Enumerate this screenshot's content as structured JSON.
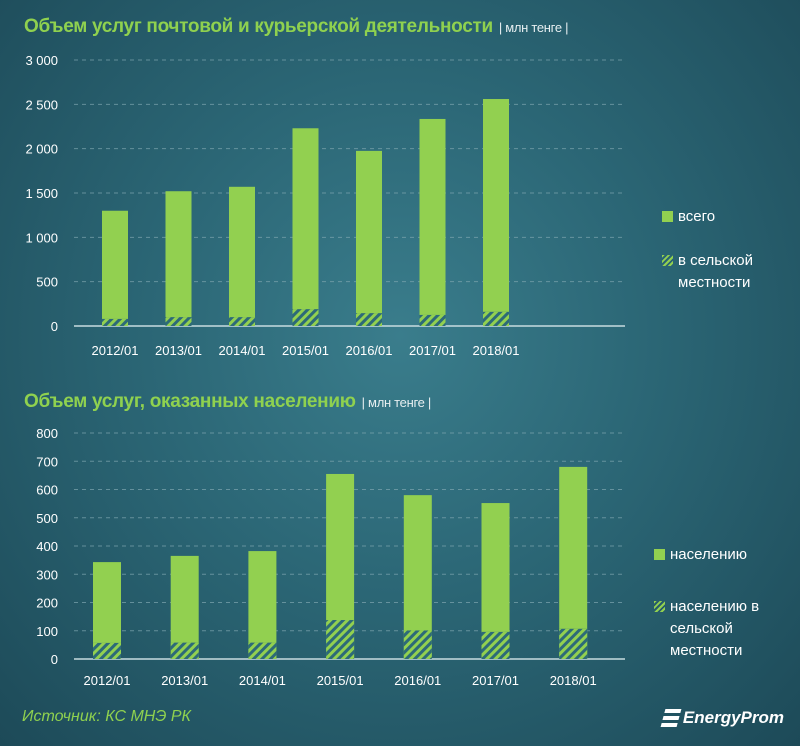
{
  "chart_data": [
    {
      "type": "bar",
      "title": "Объем услуг почтовой и курьерской деятельности",
      "unit": "| млн тенге |",
      "categories": [
        "2012/01",
        "2013/01",
        "2014/01",
        "2015/01",
        "2016/01",
        "2017/01",
        "2018/01"
      ],
      "yticks": [
        "0",
        "500",
        "1 000",
        "1 500",
        "2 000",
        "2 500",
        "3 000"
      ],
      "ylim": [
        0,
        3000
      ],
      "grid": true,
      "legend_position": "right",
      "series": [
        {
          "name": "всего",
          "style": "solid",
          "values": [
            1300,
            1520,
            1570,
            2230,
            1975,
            2335,
            2560
          ]
        },
        {
          "name": "в сельской местности",
          "style": "hatched",
          "values": [
            80,
            100,
            100,
            190,
            145,
            125,
            160
          ]
        }
      ]
    },
    {
      "type": "bar",
      "title": "Объем услуг, оказанных населению",
      "unit": "| млн тенге |",
      "categories": [
        "2012/01",
        "2013/01",
        "2014/01",
        "2015/01",
        "2016/01",
        "2017/01",
        "2018/01"
      ],
      "yticks": [
        "0",
        "100",
        "200",
        "300",
        "400",
        "500",
        "600",
        "700",
        "800"
      ],
      "ylim": [
        0,
        800
      ],
      "grid": true,
      "legend_position": "right",
      "series": [
        {
          "name": "населению",
          "style": "solid",
          "values": [
            343,
            365,
            382,
            655,
            580,
            552,
            680
          ]
        },
        {
          "name": "населению в сельской местности",
          "style": "hatched",
          "values": [
            57,
            58,
            58,
            138,
            101,
            96,
            107
          ]
        }
      ]
    }
  ],
  "source": "Источник: КС МНЭ РК",
  "logo": "EnergyProm",
  "colors": {
    "bar": "#92d050",
    "title": "#8fd14f"
  }
}
